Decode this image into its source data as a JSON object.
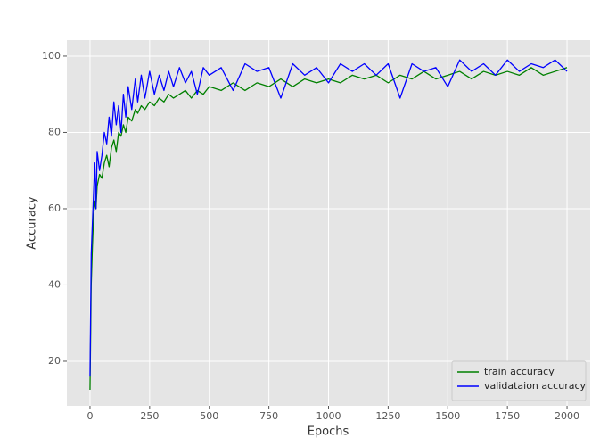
{
  "chart_data": {
    "type": "line",
    "x_label": "Epochs",
    "y_label": "Accuracy",
    "x": [
      0,
      5,
      10,
      15,
      20,
      25,
      30,
      40,
      50,
      60,
      70,
      80,
      90,
      100,
      110,
      120,
      130,
      140,
      150,
      160,
      175,
      190,
      200,
      215,
      230,
      250,
      270,
      290,
      310,
      330,
      350,
      375,
      400,
      425,
      450,
      475,
      500,
      550,
      600,
      650,
      700,
      750,
      800,
      850,
      900,
      950,
      1000,
      1050,
      1100,
      1150,
      1200,
      1250,
      1300,
      1350,
      1400,
      1450,
      1500,
      1550,
      1600,
      1650,
      1700,
      1750,
      1800,
      1850,
      1900,
      1950,
      2000
    ],
    "series": [
      {
        "name": "train accuracy",
        "color": "#008000",
        "values": [
          12.5,
          40,
          50,
          58,
          62,
          60,
          66,
          69,
          68,
          72,
          74,
          71,
          76,
          78,
          75,
          80,
          79,
          82,
          80,
          84,
          83,
          86,
          85,
          87,
          86,
          88,
          87,
          89,
          88,
          90,
          89,
          90,
          91,
          89,
          91,
          90,
          92,
          91,
          93,
          91,
          93,
          92,
          94,
          92,
          94,
          93,
          94,
          93,
          95,
          94,
          95,
          93,
          95,
          94,
          96,
          94,
          95,
          96,
          94,
          96,
          95,
          96,
          95,
          97,
          95,
          96,
          97
        ]
      },
      {
        "name": "validataion accuracy",
        "color": "#0000ff",
        "values": [
          16,
          48,
          56,
          64,
          72,
          60,
          75,
          70,
          74,
          80,
          77,
          84,
          79,
          88,
          82,
          87,
          80,
          90,
          84,
          92,
          86,
          94,
          88,
          95,
          89,
          96,
          90,
          95,
          91,
          96,
          92,
          97,
          93,
          96,
          90,
          97,
          95,
          97,
          91,
          98,
          96,
          97,
          89,
          98,
          95,
          97,
          93,
          98,
          96,
          98,
          95,
          98,
          89,
          98,
          96,
          97,
          92,
          99,
          96,
          98,
          95,
          99,
          96,
          98,
          97,
          99,
          96
        ]
      }
    ],
    "xlim": [
      -97,
      2097
    ],
    "ylim": [
      8.3,
      104.2
    ],
    "xticks": [
      0,
      250,
      500,
      750,
      1000,
      1250,
      1500,
      1750,
      2000
    ],
    "yticks": [
      20,
      40,
      60,
      80,
      100
    ],
    "grid": true,
    "legend": "lower right"
  }
}
